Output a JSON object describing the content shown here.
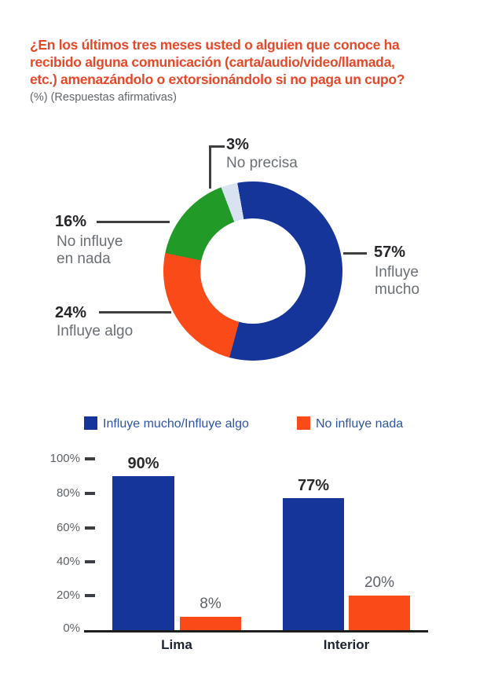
{
  "header": {
    "title": "¿En los últimos tres meses usted o alguien que conoce ha\nrecibido alguna comunicación (carta/audio/video/llamada,\netc.) amenazándolo o extorsionándolo si no paga un cupo?",
    "subtitle": "(%) (Respuestas afirmativas)"
  },
  "colors": {
    "navy": "#16359b",
    "orange": "#f94a17",
    "green": "#219a27",
    "light_blue": "#d8e2f1",
    "title_red": "#e4492a",
    "gray_text": "#6a6f76",
    "axis_text": "#5d6268",
    "axis_line": "#1e1e1e",
    "legend_text": "#2e55a2"
  },
  "chart_data": [
    {
      "type": "pie",
      "subtype": "donut",
      "labels": [
        "Influye mucho",
        "Influye algo",
        "No influye en nada",
        "No precisa"
      ],
      "values": [
        57,
        24,
        16,
        3
      ],
      "colors": [
        "#16359b",
        "#f94a17",
        "#219a27",
        "#d8e2f1"
      ],
      "start_angle_deg": -10,
      "unit": "%",
      "callouts": [
        {
          "pct": "3%",
          "text": "No precisa"
        },
        {
          "pct": "16%",
          "text": "No influye\nen nada"
        },
        {
          "pct": "24%",
          "text": "Influye algo"
        },
        {
          "pct": "57%",
          "text": "Influye\nmucho"
        }
      ]
    },
    {
      "type": "bar",
      "categories": [
        "Lima",
        "Interior"
      ],
      "series": [
        {
          "name": "Influye mucho/Influye algo",
          "color": "#16359b",
          "values": [
            90,
            77
          ],
          "value_labels": [
            "90%",
            "77%"
          ]
        },
        {
          "name": "No influye nada",
          "color": "#f94a17",
          "values": [
            8,
            20
          ],
          "value_labels": [
            "8%",
            "20%"
          ]
        }
      ],
      "yticks": [
        "100%",
        "80%",
        "60%",
        "40%",
        "20%",
        "0%"
      ],
      "ylim": [
        0,
        100
      ],
      "grid": false,
      "legend_position": "top"
    }
  ]
}
